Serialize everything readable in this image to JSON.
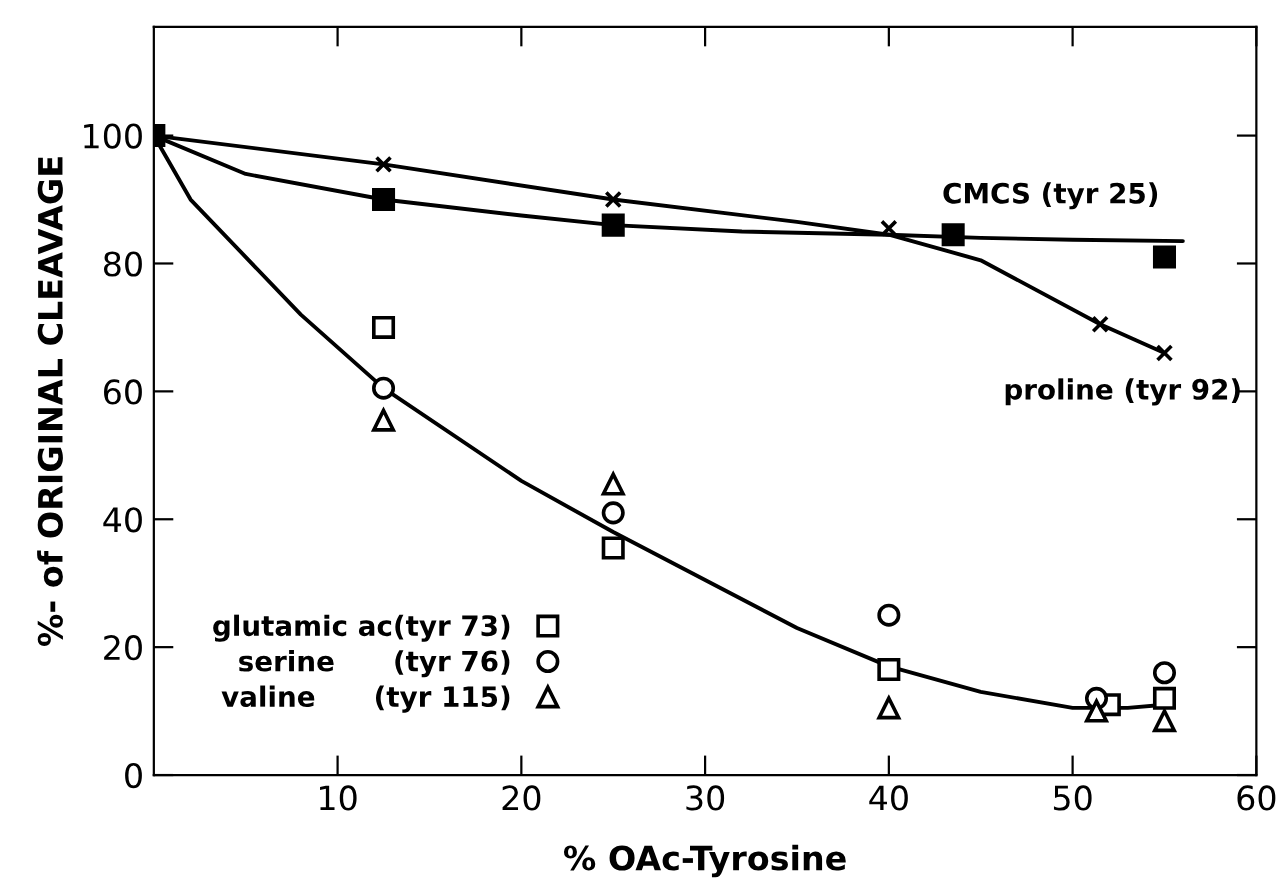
{
  "chart_data": {
    "type": "scatter",
    "xlabel": "% OAc-Tyrosine",
    "ylabel": "%- of ORIGINAL CLEAVAGE",
    "xlim": [
      0,
      60
    ],
    "ylim": [
      0,
      117
    ],
    "xticks": [
      10,
      20,
      30,
      40,
      50,
      60
    ],
    "yticks": [
      0,
      20,
      40,
      60,
      80,
      100
    ],
    "grid": false,
    "legend": "bottom left",
    "series": [
      {
        "type": "line",
        "marker": "none",
        "color": "#000000",
        "x": [
          0,
          5,
          12.5,
          20,
          25,
          32,
          40,
          45,
          50,
          56
        ],
        "values": [
          100,
          94,
          90,
          87.5,
          86,
          85,
          84.5,
          84,
          83.7,
          83.5
        ]
      },
      {
        "type": "line",
        "marker": "none",
        "color": "#000000",
        "x": [
          0,
          12.5,
          25,
          35,
          40,
          45,
          51.5,
          55
        ],
        "values": [
          100,
          95.5,
          90,
          86.5,
          84.5,
          80.5,
          70.5,
          66
        ]
      },
      {
        "type": "line",
        "marker": "none",
        "color": "#000000",
        "x": [
          0,
          2,
          5,
          8,
          12.5,
          20,
          25,
          30,
          35,
          40,
          45,
          50,
          53,
          55
        ],
        "values": [
          100,
          90,
          81,
          72,
          60.5,
          46,
          38,
          30.5,
          23,
          17,
          13,
          10.5,
          10.5,
          11
        ]
      },
      {
        "name": "CMCS (tyr 25)",
        "marker": "square",
        "color": "#000000",
        "x": [
          0,
          12.5,
          25,
          43.5,
          55
        ],
        "values": [
          100,
          90,
          86,
          84.5,
          81
        ]
      },
      {
        "name": "proline (tyr 92)",
        "marker": "cross",
        "color": "#000000",
        "x": [
          12.5,
          25,
          40,
          51.5,
          55
        ],
        "values": [
          95.5,
          90,
          85.5,
          70.5,
          66
        ]
      },
      {
        "name": "glutamic ac(tyr 73)",
        "marker": "square",
        "color": "#000000",
        "x": [
          12.5,
          25,
          40,
          52,
          55
        ],
        "values": [
          70,
          35.5,
          16.5,
          11,
          12
        ]
      },
      {
        "name": "serine      (tyr 76)",
        "marker": "circle",
        "color": "#000000",
        "x": [
          12.5,
          25,
          40,
          51.3,
          55
        ],
        "values": [
          60.5,
          41,
          25,
          12,
          16
        ]
      },
      {
        "name": "valine      (tyr 115)",
        "marker": "triangle",
        "color": "#000000",
        "x": [
          12.5,
          25,
          40,
          51.3,
          55
        ],
        "values": [
          55.5,
          45.5,
          10.5,
          10,
          8.5
        ]
      }
    ]
  }
}
